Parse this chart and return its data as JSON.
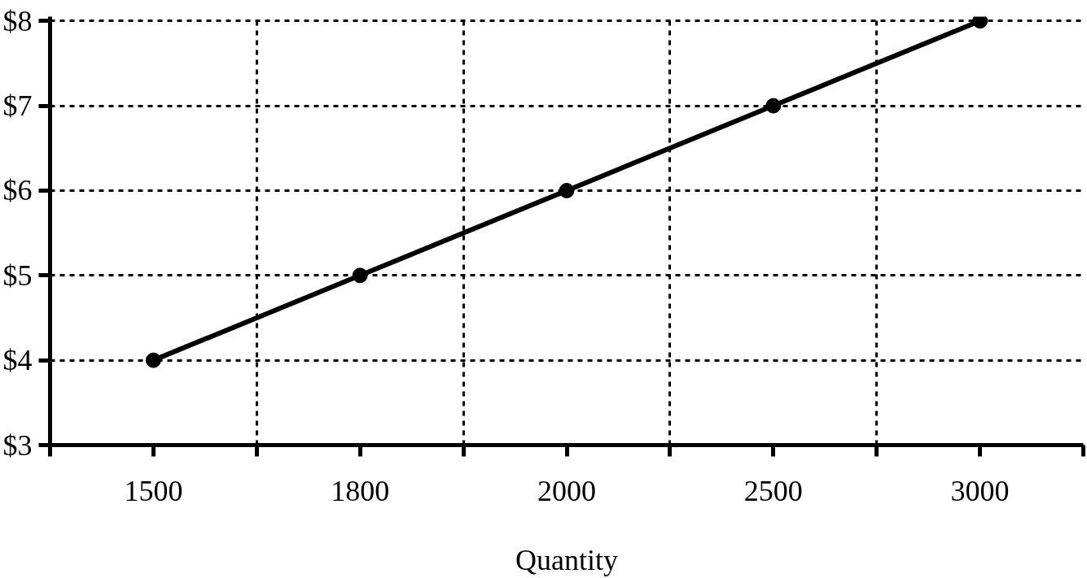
{
  "chart_data": {
    "type": "line",
    "xlabel": "Quantity",
    "categories": [
      "1500",
      "1800",
      "2000",
      "2500",
      "3000"
    ],
    "series": [
      {
        "color": "#000000",
        "values": [
          4,
          5,
          6,
          7,
          8
        ]
      }
    ],
    "ylim": [
      3,
      8.05
    ],
    "yticks": [
      {
        "value": 3,
        "label": "$3"
      },
      {
        "value": 4,
        "label": "$4"
      },
      {
        "value": 5,
        "label": "$5"
      },
      {
        "value": 6,
        "label": "$6"
      },
      {
        "value": 7,
        "label": "$7"
      },
      {
        "value": 8,
        "label": "$8"
      }
    ],
    "grid": true,
    "marker": "circle",
    "line_style": "solid"
  }
}
